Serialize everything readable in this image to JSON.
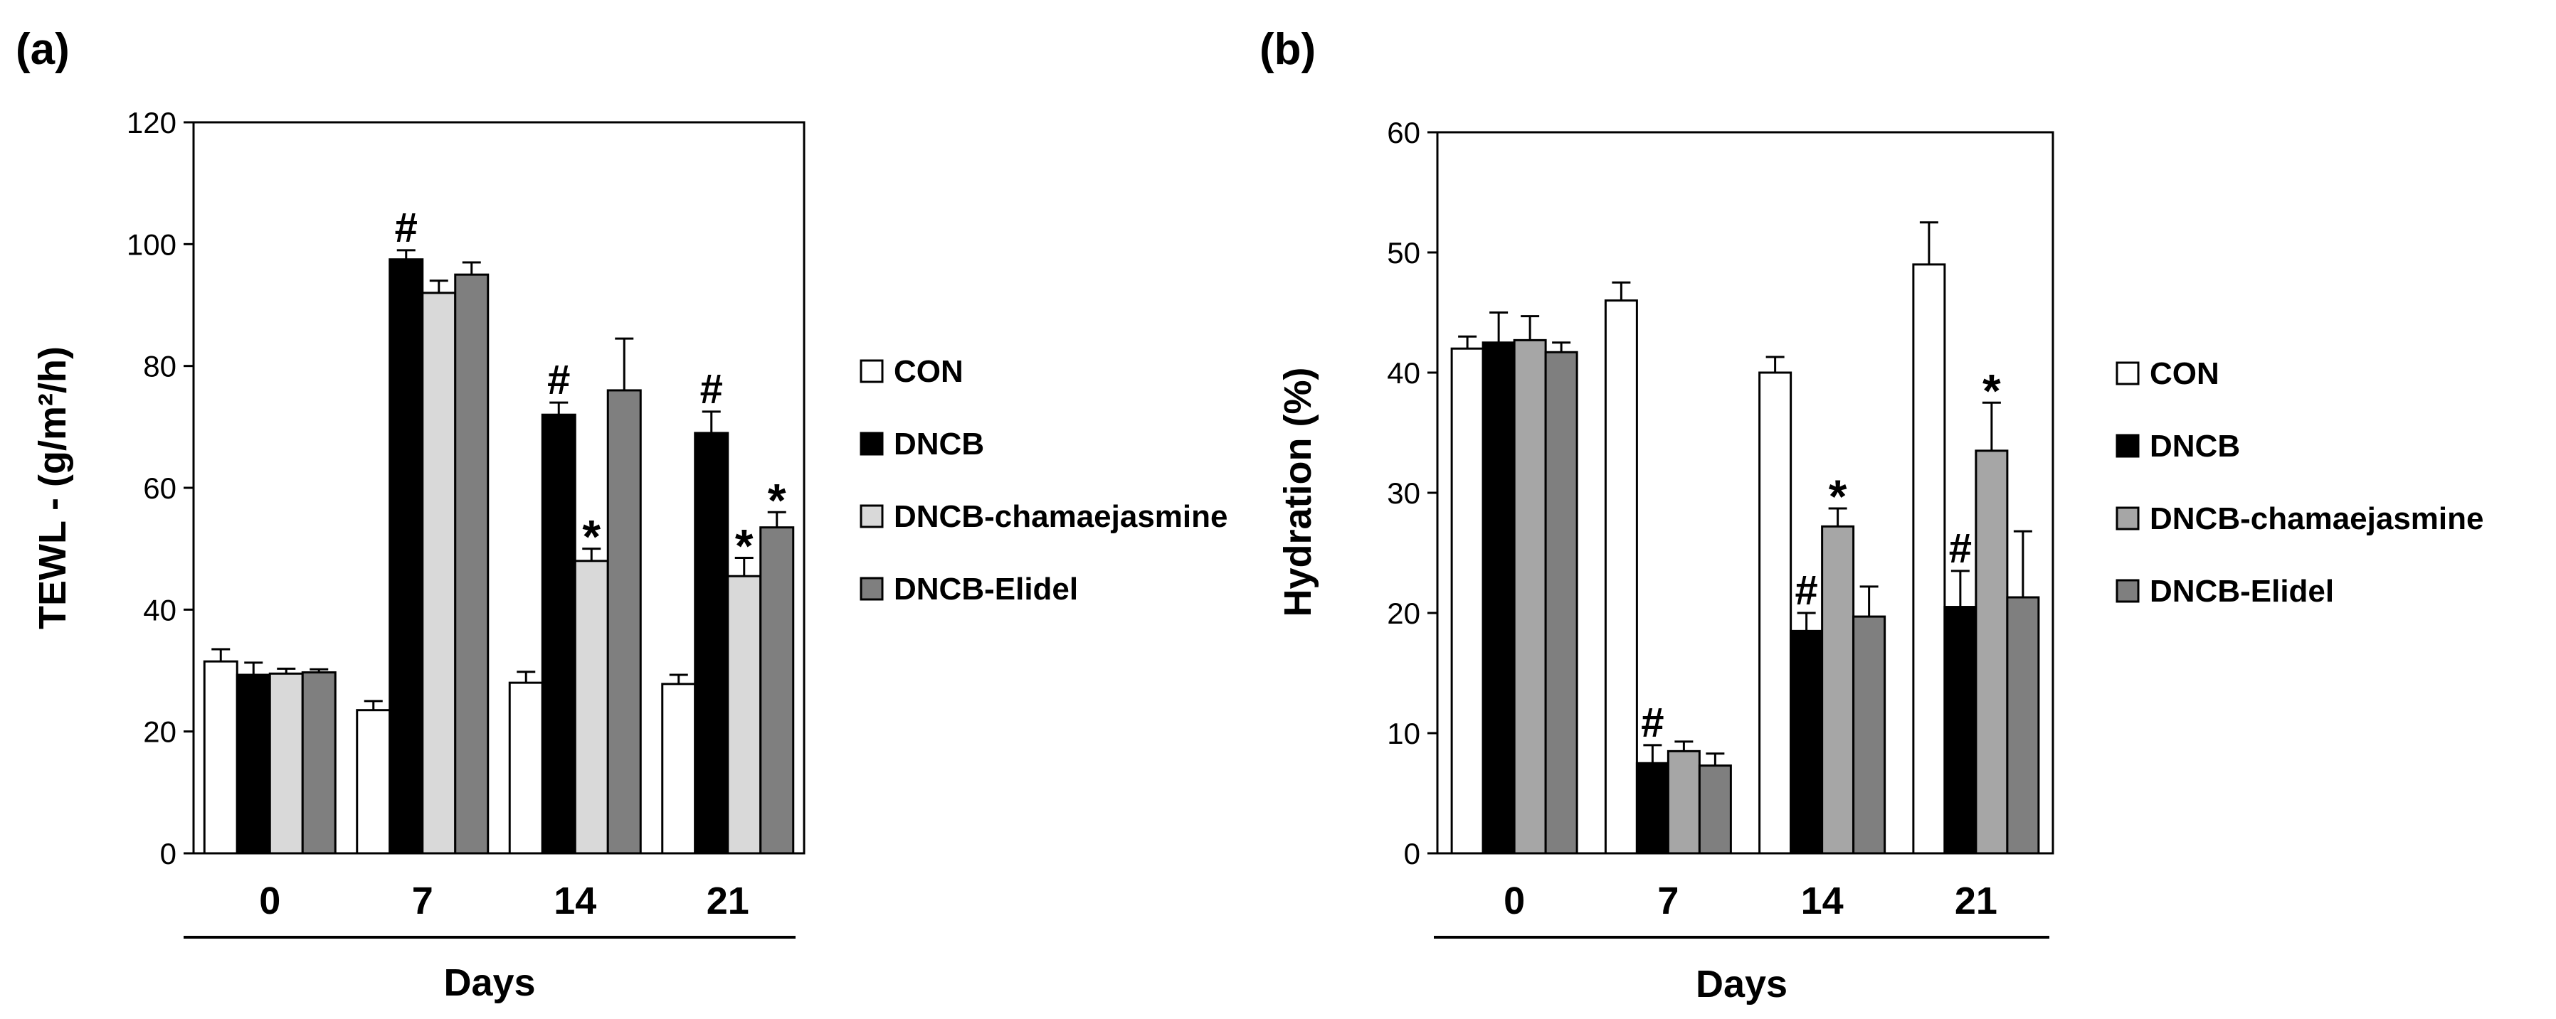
{
  "chart_data": [
    {
      "type": "bar",
      "panel_label": "(a)",
      "title": "",
      "xlabel": "Days",
      "ylabel": "TEWL - (g/m²/h)",
      "ylim": [
        0,
        120
      ],
      "yticks": [
        0,
        20,
        40,
        60,
        80,
        100,
        120
      ],
      "categories": [
        "0",
        "7",
        "14",
        "21"
      ],
      "series": [
        {
          "name": "CON",
          "color": "#ffffff",
          "values": [
            31.5,
            23.5,
            28.0,
            27.8
          ],
          "errors": [
            2.0,
            1.5,
            1.8,
            1.5
          ],
          "annotations": [
            "",
            "",
            "",
            ""
          ]
        },
        {
          "name": "DNCB",
          "color": "#000000",
          "values": [
            29.3,
            97.5,
            72.0,
            69.0
          ],
          "errors": [
            2.0,
            1.5,
            2.0,
            3.5
          ],
          "annotations": [
            "",
            "#",
            "#",
            "#"
          ]
        },
        {
          "name": "DNCB-chamaejasmine",
          "color": "#d9d9d9",
          "values": [
            29.5,
            92.0,
            48.0,
            45.5
          ],
          "errors": [
            0.8,
            2.0,
            2.0,
            3.0
          ],
          "annotations": [
            "",
            "",
            "*",
            "*"
          ]
        },
        {
          "name": "DNCB-Elidel",
          "color": "#7f7f7f",
          "values": [
            29.7,
            95.0,
            76.0,
            53.5
          ],
          "errors": [
            0.5,
            2.0,
            8.5,
            2.5
          ],
          "annotations": [
            "",
            "",
            "",
            "*"
          ]
        }
      ],
      "legend_position": "right"
    },
    {
      "type": "bar",
      "panel_label": "(b)",
      "title": "",
      "xlabel": "Days",
      "ylabel": "Hydration (%)",
      "ylim": [
        0,
        60
      ],
      "yticks": [
        0,
        10,
        20,
        30,
        40,
        50,
        60
      ],
      "categories": [
        "0",
        "7",
        "14",
        "21"
      ],
      "series": [
        {
          "name": "CON",
          "color": "#ffffff",
          "values": [
            42.0,
            46.0,
            40.0,
            49.0
          ],
          "errors": [
            1.0,
            1.5,
            1.3,
            3.5
          ],
          "annotations": [
            "",
            "",
            "",
            ""
          ]
        },
        {
          "name": "DNCB",
          "color": "#000000",
          "values": [
            42.5,
            7.5,
            18.5,
            20.5
          ],
          "errors": [
            2.5,
            1.5,
            1.5,
            3.0
          ],
          "annotations": [
            "",
            "#",
            "#",
            "#"
          ]
        },
        {
          "name": "DNCB-chamaejasmine",
          "color": "#a6a6a6",
          "values": [
            42.7,
            8.5,
            27.2,
            33.5
          ],
          "errors": [
            2.0,
            0.8,
            1.5,
            4.0
          ],
          "annotations": [
            "",
            "",
            "*",
            "*"
          ]
        },
        {
          "name": "DNCB-Elidel",
          "color": "#7f7f7f",
          "values": [
            41.7,
            7.3,
            19.7,
            21.3
          ],
          "errors": [
            0.8,
            1.0,
            2.5,
            5.5
          ],
          "annotations": [
            "",
            "",
            "",
            ""
          ]
        }
      ],
      "legend_position": "right"
    }
  ]
}
